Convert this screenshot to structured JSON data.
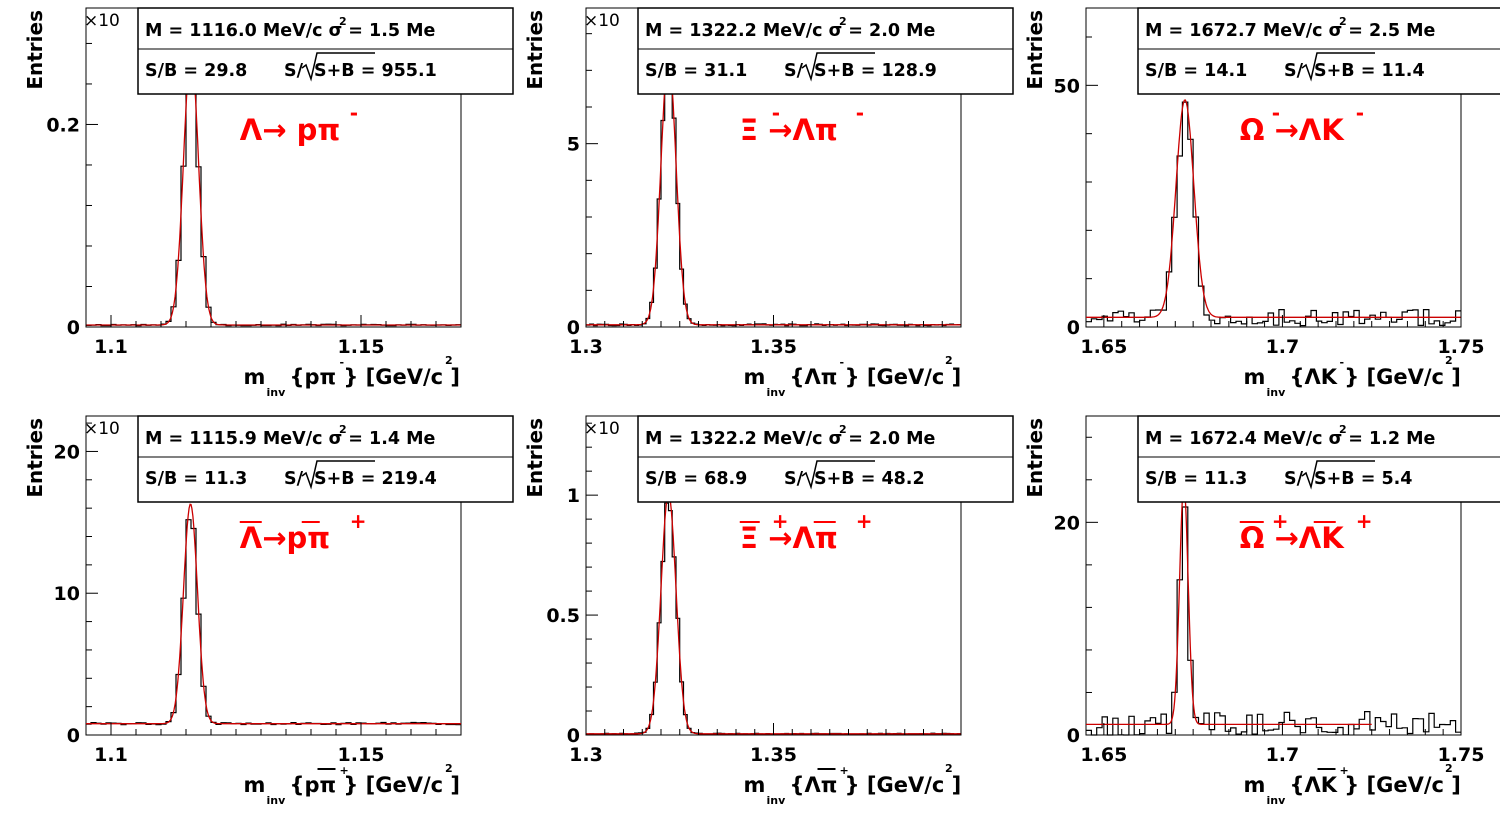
{
  "figure": {
    "colors": {
      "histogram": "#000000",
      "fit": "#cc0000",
      "process_label": "#ff0000"
    }
  },
  "chart_data": [
    {
      "type": "histogram",
      "ylabel": "Entries",
      "xlabel": {
        "main": "m",
        "sub": "inv",
        "text": "{pπ } [GeV/c ]",
        "sup_particle": "-",
        "sup_unit": "2"
      },
      "xlim": [
        1.095,
        1.17
      ],
      "ylim": [
        0,
        0.315
      ],
      "y_multiplier": "×10",
      "x_ticks": [
        1.1,
        1.15
      ],
      "x_tick_labels": [
        "1.1",
        "1.15"
      ],
      "y_ticks": [
        0,
        0.2
      ],
      "y_tick_labels": [
        "0",
        "0.2"
      ],
      "stats": {
        "line1": "M = 1116.0 MeV/c  σ = 1.5 Me",
        "m_sup": "2",
        "sb": "S/B = 29.8",
        "sig_prefix": "S/",
        "sig_value": "S+B = 955.1"
      },
      "process": {
        "text": "Λ→ pπ",
        "sup": "-",
        "bars": []
      },
      "peak": {
        "mean": 1.116,
        "sigma": 0.0015,
        "amplitude": 0.268,
        "background": 0.002
      },
      "bin_width": 0.001,
      "noise": {
        "rel": 0.06,
        "bkg_rel": 0.4,
        "seed": 11
      }
    },
    {
      "type": "histogram",
      "ylabel": "Entries",
      "xlabel": {
        "main": "m",
        "sub": "inv",
        "text": "{Λπ } [GeV/c ]",
        "sup_particle": "-",
        "sup_unit": "2"
      },
      "xlim": [
        1.3,
        1.4
      ],
      "ylim": [
        0,
        8.7
      ],
      "y_multiplier": "×10",
      "x_ticks": [
        1.3,
        1.35
      ],
      "x_tick_labels": [
        "1.3",
        "1.35"
      ],
      "y_ticks": [
        0,
        5
      ],
      "y_tick_labels": [
        "0",
        "5"
      ],
      "stats": {
        "line1": "M = 1322.2 MeV/c  σ = 2.0 Me",
        "m_sup": "2",
        "sb": "S/B = 31.1",
        "sig_prefix": "S/",
        "sig_value": "S+B = 128.9"
      },
      "process": {
        "text": "Ξ →Λπ",
        "sup": "-",
        "sup2": "-",
        "bars": []
      },
      "peak": {
        "mean": 1.322,
        "sigma": 0.002,
        "amplitude": 7.3,
        "background": 0.06
      },
      "bin_width": 0.001,
      "noise": {
        "rel": 0.04,
        "bkg_rel": 0.4,
        "seed": 22
      }
    },
    {
      "type": "histogram",
      "ylabel": "Entries",
      "xlabel": {
        "main": "m",
        "sub": "inv",
        "text": "{ΛK } [GeV/c ]",
        "sup_particle": "-",
        "sup_unit": "2"
      },
      "xlim": [
        1.645,
        1.75
      ],
      "ylim": [
        0,
        66
      ],
      "y_multiplier": "",
      "x_ticks": [
        1.65,
        1.7,
        1.75
      ],
      "x_tick_labels": [
        "1.65",
        "1.7",
        "1.75"
      ],
      "y_ticks": [
        0,
        50
      ],
      "y_tick_labels": [
        "0",
        "50"
      ],
      "stats": {
        "line1": "M = 1672.7 MeV/c  σ = 2.5 Me",
        "m_sup": "2",
        "sb": "S/B = 14.1",
        "sig_prefix": "S/",
        "sig_value": "S+B = 11.4"
      },
      "process": {
        "text": "Ω →ΛK",
        "sup": "-",
        "sup2": "-",
        "bars": []
      },
      "peak": {
        "mean": 1.6727,
        "sigma": 0.0025,
        "amplitude": 45,
        "background": 2
      },
      "bin_width": 0.0015,
      "noise": {
        "rel": 0.1,
        "bkg_rel": 0.9,
        "seed": 33
      }
    },
    {
      "type": "histogram",
      "ylabel": "Entries",
      "xlabel": {
        "main": "m",
        "sub": "inv",
        "text": "{pπ } [GeV/c ]",
        "sup_particle": "+",
        "sup_unit": "2",
        "overbar": true
      },
      "xlim": [
        1.095,
        1.17
      ],
      "ylim": [
        0,
        22.5
      ],
      "y_multiplier": "×10",
      "x_ticks": [
        1.1,
        1.15
      ],
      "x_tick_labels": [
        "1.1",
        "1.15"
      ],
      "y_ticks": [
        0,
        10,
        20
      ],
      "y_tick_labels": [
        "0",
        "10",
        "20"
      ],
      "stats": {
        "line1": "M = 1115.9 MeV/c  σ = 1.4 Me",
        "m_sup": "2",
        "sb": "S/B = 11.3",
        "sig_prefix": "S/",
        "sig_value": "S+B = 219.4"
      },
      "process": {
        "text": "Λ→pπ",
        "sup": "+",
        "bars": [
          "lambda",
          "p"
        ]
      },
      "peak": {
        "mean": 1.1159,
        "sigma": 0.0014,
        "amplitude": 15.5,
        "background": 0.8
      },
      "bin_width": 0.001,
      "noise": {
        "rel": 0.06,
        "bkg_rel": 0.1,
        "seed": 44
      }
    },
    {
      "type": "histogram",
      "ylabel": "Entries",
      "xlabel": {
        "main": "m",
        "sub": "inv",
        "text": "{Λπ } [GeV/c ]",
        "sup_particle": "+",
        "sup_unit": "2",
        "overbar": true
      },
      "xlim": [
        1.3,
        1.4
      ],
      "ylim": [
        0,
        1.33
      ],
      "y_multiplier": "×10",
      "x_ticks": [
        1.3,
        1.35
      ],
      "x_tick_labels": [
        "1.3",
        "1.35"
      ],
      "y_ticks": [
        0,
        0.5,
        1
      ],
      "y_tick_labels": [
        "0",
        "0.5",
        "1"
      ],
      "stats": {
        "line1": "M = 1322.2 MeV/c  σ = 2.0 Me",
        "m_sup": "2",
        "sb": "S/B = 68.9",
        "sig_prefix": "S/",
        "sig_value": "S+B = 48.2"
      },
      "process": {
        "text": "Ξ →Λπ",
        "sup": "+",
        "sup2": "+",
        "bars": [
          "xi",
          "lambda"
        ]
      },
      "peak": {
        "mean": 1.322,
        "sigma": 0.002,
        "amplitude": 1.0,
        "background": 0.005
      },
      "bin_width": 0.001,
      "noise": {
        "rel": 0.05,
        "bkg_rel": 0.6,
        "seed": 55
      }
    },
    {
      "type": "histogram",
      "ylabel": "Entries",
      "xlabel": {
        "main": "m",
        "sub": "inv",
        "text": "{ΛK } [GeV/c ]",
        "sup_particle": "+",
        "sup_unit": "2",
        "overbar": true
      },
      "xlim": [
        1.645,
        1.75
      ],
      "ylim": [
        0,
        30
      ],
      "y_multiplier": "",
      "x_ticks": [
        1.65,
        1.7,
        1.75
      ],
      "x_tick_labels": [
        "1.65",
        "1.7",
        "1.75"
      ],
      "y_ticks": [
        0,
        20
      ],
      "y_tick_labels": [
        "0",
        "20"
      ],
      "stats": {
        "line1": "M = 1672.4 MeV/c  σ = 1.2 Me",
        "m_sup": "2",
        "sb": "S/B = 11.3",
        "sig_prefix": "S/",
        "sig_value": "S+B = 5.4"
      },
      "process": {
        "text": "Ω →ΛK",
        "sup": "+",
        "sup2": "+",
        "bars": [
          "omega",
          "lambda"
        ]
      },
      "peak": {
        "mean": 1.6724,
        "sigma": 0.0012,
        "amplitude": 22.5,
        "background": 1.0
      },
      "bin_width": 0.0015,
      "fit_range": [
        1.645,
        1.725
      ],
      "noise": {
        "rel": 0.08,
        "bkg_rel": 1.2,
        "seed": 66
      }
    }
  ]
}
